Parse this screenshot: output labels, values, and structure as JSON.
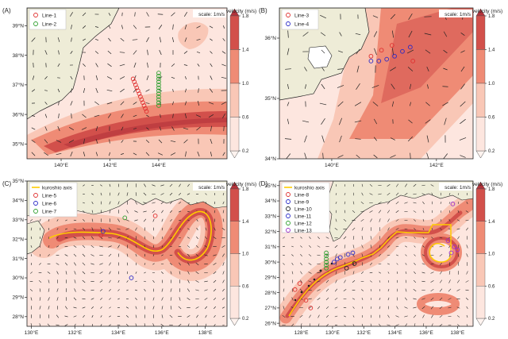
{
  "figure": {
    "scale_label": "scale: 1m/s",
    "colorbar_title": "velocity (m/s)",
    "colorbar_levels": [
      "0.2",
      "0.6",
      "1.0",
      "1.4",
      "1.8"
    ],
    "colors": {
      "land": "#eeecd7",
      "c1": "#fde6df",
      "c2": "#f9c7b6",
      "c3": "#ef8b75",
      "c4": "#d2504b",
      "c5": "#b2323a",
      "axis": "#ffcc00"
    }
  },
  "chart_data": [
    {
      "panel": "(A)",
      "type": "scatter",
      "xticks": [
        "140°E",
        "142°E",
        "144°E"
      ],
      "yticks": [
        "35°N",
        "36°N",
        "37°N",
        "38°N",
        "39°N"
      ],
      "xlim": [
        138.6,
        146.8
      ],
      "ylim": [
        34.5,
        39.6
      ],
      "legend": {
        "placement": "top-left",
        "entries": [
          {
            "label": "Line-1",
            "color": "#e03030"
          },
          {
            "label": "Line-2",
            "color": "#2e9e2e"
          }
        ]
      },
      "series": [
        {
          "name": "Line-1",
          "color": "#e03030",
          "x": [
            142.95,
            143.0,
            143.05,
            143.1,
            143.15,
            143.2,
            143.25,
            143.3,
            143.35,
            143.4,
            143.45,
            143.5
          ],
          "y": [
            37.2,
            37.1,
            37.0,
            36.9,
            36.8,
            36.7,
            36.6,
            36.5,
            36.4,
            36.3,
            36.2,
            36.1
          ]
        },
        {
          "name": "Line-2",
          "color": "#2e9e2e",
          "x": [
            144.0,
            144.0,
            144.0,
            144.0,
            144.0,
            144.0,
            144.0,
            144.0,
            144.0,
            144.0,
            144.0,
            144.0
          ],
          "y": [
            37.4,
            37.3,
            37.2,
            37.1,
            37.0,
            36.9,
            36.8,
            36.7,
            36.6,
            36.5,
            36.4,
            36.3
          ]
        }
      ]
    },
    {
      "panel": "(B)",
      "type": "scatter",
      "xticks": [
        "140°E",
        "142°E"
      ],
      "yticks": [
        "34°N",
        "35°N",
        "36°N"
      ],
      "xlim": [
        139.0,
        142.7
      ],
      "ylim": [
        34.0,
        36.5
      ],
      "legend": {
        "placement": "top-left",
        "entries": [
          {
            "label": "Line-3",
            "color": "#e03030"
          },
          {
            "label": "Line-4",
            "color": "#2a2ac8"
          }
        ]
      },
      "series": [
        {
          "name": "Line-3",
          "color": "#e03030",
          "x": [
            140.75,
            140.95,
            141.15,
            141.55
          ],
          "y": [
            35.7,
            35.8,
            35.88,
            35.62
          ]
        },
        {
          "name": "Line-4",
          "color": "#2a2ac8",
          "x": [
            140.75,
            140.9,
            141.05,
            141.2,
            141.35,
            141.5
          ],
          "y": [
            35.62,
            35.62,
            35.65,
            35.7,
            35.78,
            35.85
          ]
        }
      ]
    },
    {
      "panel": "(C)",
      "type": "scatter",
      "xticks": [
        "130°E",
        "132°E",
        "134°E",
        "136°E",
        "138°E"
      ],
      "yticks": [
        "28°N",
        "29°N",
        "30°N",
        "31°N",
        "32°N",
        "33°N",
        "34°N",
        "35°N"
      ],
      "xlim": [
        129.8,
        139.0
      ],
      "ylim": [
        27.5,
        35.0
      ],
      "legend": {
        "placement": "top-left",
        "entries": [
          {
            "label": "kuroshio axis",
            "color": "#ffcc00"
          },
          {
            "label": "Line-5",
            "color": "#e03030"
          },
          {
            "label": "Line-6",
            "color": "#2a2ac8"
          },
          {
            "label": "Line-7",
            "color": "#2e9e2e"
          }
        ]
      },
      "series": [
        {
          "name": "Line-5",
          "color": "#e03030",
          "x": [
            135.7,
            133.2
          ],
          "y": [
            33.2,
            32.2
          ]
        },
        {
          "name": "Line-6",
          "color": "#2a2ac8",
          "x": [
            133.3,
            134.6
          ],
          "y": [
            32.4,
            30.0
          ]
        },
        {
          "name": "Line-7",
          "color": "#2e9e2e",
          "x": [
            134.3
          ],
          "y": [
            33.1
          ]
        }
      ]
    },
    {
      "panel": "(D)",
      "type": "scatter",
      "xticks": [
        "128°E",
        "130°E",
        "132°E",
        "134°E",
        "136°E",
        "138°E"
      ],
      "yticks": [
        "26°N",
        "27°N",
        "28°N",
        "29°N",
        "30°N",
        "31°N",
        "32°N",
        "33°N",
        "34°N",
        "35°N"
      ],
      "xlim": [
        126.6,
        139.0
      ],
      "ylim": [
        25.8,
        35.3
      ],
      "legend": {
        "placement": "top-left",
        "entries": [
          {
            "label": "kuroshio axis",
            "color": "#ffcc00"
          },
          {
            "label": "Line-8",
            "color": "#e03030"
          },
          {
            "label": "Line-9",
            "color": "#2a2ac8"
          },
          {
            "label": "Line-10",
            "color": "#222222"
          },
          {
            "label": "Line-11",
            "color": "#2a2ac8"
          },
          {
            "label": "Line-12",
            "color": "#2e9e2e"
          },
          {
            "label": "Line-13",
            "color": "#9b30c8"
          }
        ]
      },
      "series": [
        {
          "name": "Line-8",
          "color": "#e03030",
          "x": [
            127.6,
            127.9,
            128.3,
            128.6
          ],
          "y": [
            28.2,
            28.6,
            27.5,
            27.0
          ]
        },
        {
          "name": "Line-9",
          "color": "#2a2ac8",
          "x": [
            130.5,
            131.0,
            131.3
          ],
          "y": [
            30.3,
            30.5,
            30.6
          ]
        },
        {
          "name": "Line-10",
          "color": "#222222",
          "x": [
            130.9,
            131.4
          ],
          "y": [
            29.6,
            29.9
          ]
        },
        {
          "name": "Line-11",
          "color": "#2a2ac8",
          "x": [
            130.1,
            130.3
          ],
          "y": [
            30.0,
            30.2
          ]
        },
        {
          "name": "Line-12",
          "color": "#2e9e2e",
          "x": [
            129.6,
            129.6,
            129.6,
            129.6,
            129.6,
            129.6
          ],
          "y": [
            30.6,
            30.4,
            30.2,
            30.0,
            29.8,
            29.6
          ]
        },
        {
          "name": "Line-13",
          "color": "#9b30c8",
          "x": [
            137.7,
            137.8,
            138.0,
            137.4,
            137.6
          ],
          "y": [
            33.8,
            31.0,
            30.8,
            31.4,
            30.6
          ]
        }
      ]
    }
  ]
}
